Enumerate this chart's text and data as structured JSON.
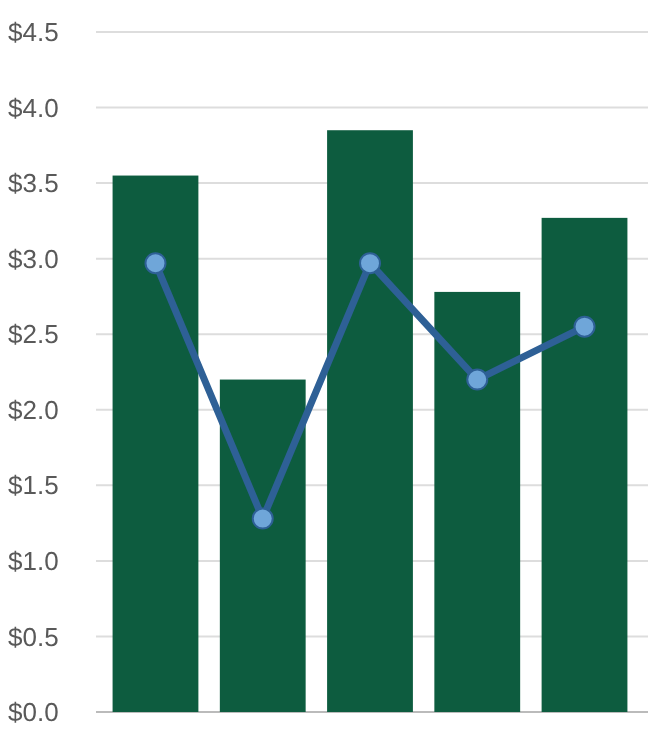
{
  "chart_data": {
    "type": "bar",
    "categories": [
      null,
      null,
      null,
      null,
      null
    ],
    "series": [
      {
        "color": "#0d5c3f",
        "values": [
          3.55,
          2.2,
          3.85,
          2.78,
          3.27
        ]
      },
      {
        "type": "line",
        "color": "#2e6096",
        "values": [
          2.97,
          1.28,
          2.97,
          2.2,
          2.55
        ]
      }
    ],
    "ylim": [
      0,
      4.5
    ],
    "yticks": [
      {
        "value": 0,
        "label": "$0.0"
      },
      {
        "value": 0.5,
        "label": "$0.5"
      },
      {
        "value": 1,
        "label": "$1.0"
      },
      {
        "value": 1.5,
        "label": "$1.5"
      },
      {
        "value": 2,
        "label": "$2.0"
      },
      {
        "value": 2.5,
        "label": "$2.5"
      },
      {
        "value": 3,
        "label": "$3.0"
      },
      {
        "value": 3.5,
        "label": "$3.5"
      },
      {
        "value": 4,
        "label": "$4.0"
      },
      {
        "value": 4.5,
        "label": "$4.5"
      }
    ],
    "grid": "y",
    "marker": "circle",
    "line_style": "solid"
  }
}
